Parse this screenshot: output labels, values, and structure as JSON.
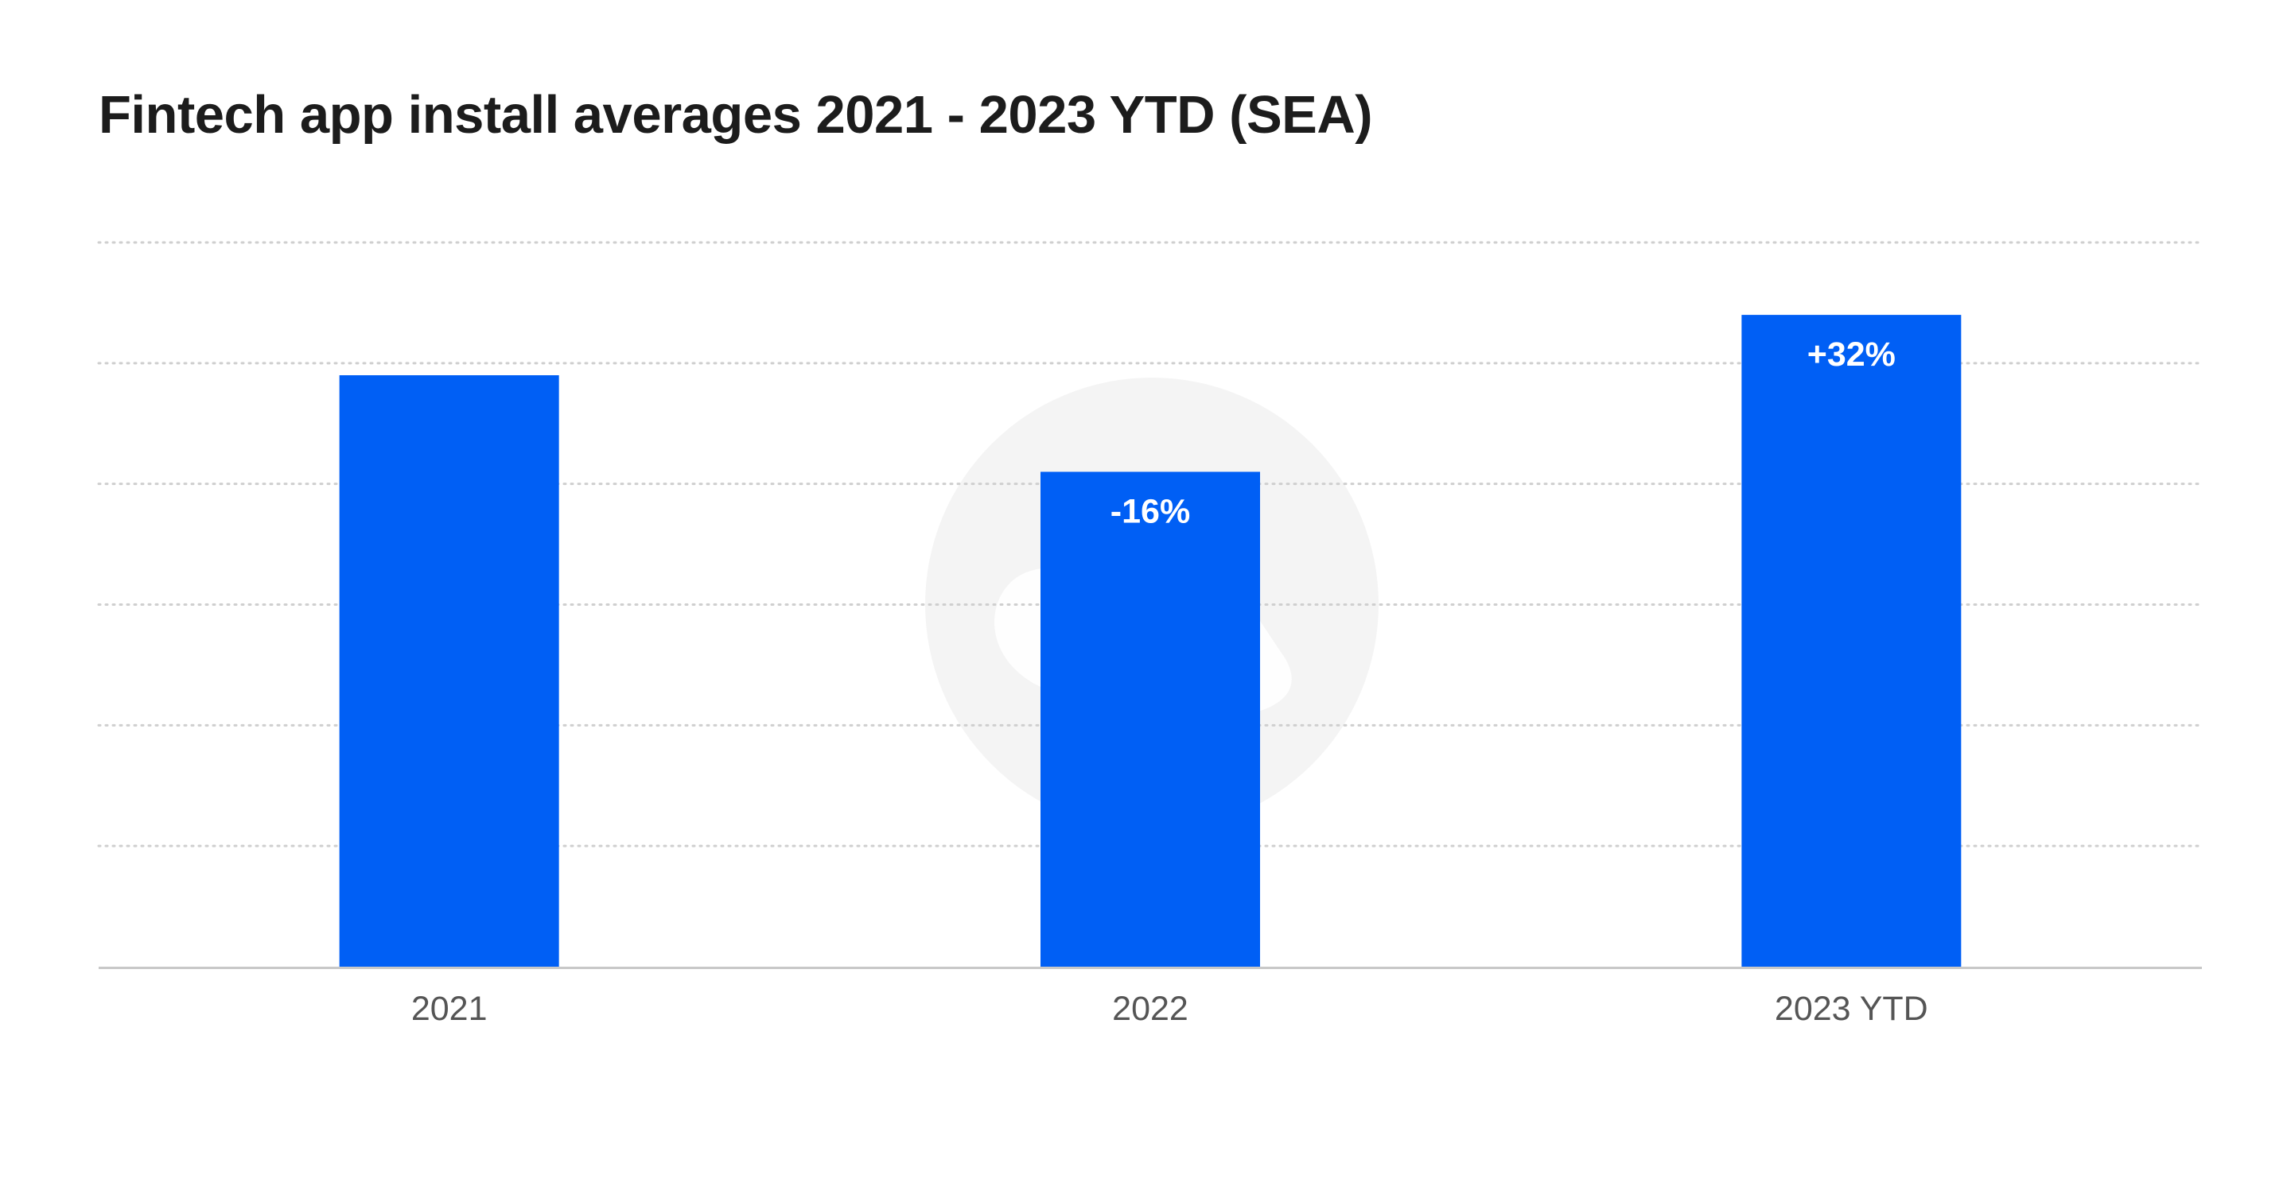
{
  "chart_data": {
    "type": "bar",
    "title": "Fintech app install averages 2021 - 2023 YTD (SEA)",
    "categories": [
      "2021",
      "2022",
      "2023 YTD"
    ],
    "values": [
      4.9,
      4.1,
      5.4
    ],
    "data_labels": [
      "",
      "-16%",
      "+32%"
    ],
    "xlabel": "",
    "ylabel": "",
    "ylim": [
      0,
      6
    ],
    "y_ticks_shown": false,
    "grid": true,
    "grid_style": "dotted",
    "legend": "none",
    "colors": {
      "bar": "#005FF5",
      "grid": "#cfcfcf",
      "axis": "#c8c8c8",
      "tick_text": "#555555",
      "watermark": "#f4f4f4"
    }
  }
}
